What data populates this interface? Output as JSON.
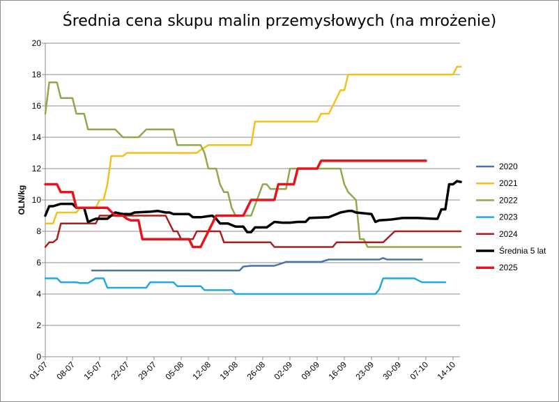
{
  "chart_data": {
    "type": "line",
    "title": "Średnia cena skupu malin przemysłowych (na mrożenie)",
    "xlabel": "",
    "ylabel": "OLN/kg",
    "ylim": [
      0,
      20
    ],
    "yticks": [
      0,
      2,
      4,
      6,
      8,
      10,
      12,
      14,
      16,
      18,
      20
    ],
    "xlim": [
      0,
      105
    ],
    "xticks": [
      {
        "x": 0,
        "label": "01-07"
      },
      {
        "x": 7,
        "label": "08-07"
      },
      {
        "x": 14,
        "label": "15-07"
      },
      {
        "x": 21,
        "label": "22-07"
      },
      {
        "x": 28,
        "label": "29-07"
      },
      {
        "x": 35,
        "label": "05-08"
      },
      {
        "x": 42,
        "label": "12-08"
      },
      {
        "x": 49,
        "label": "19-08"
      },
      {
        "x": 56,
        "label": "26-08"
      },
      {
        "x": 63,
        "label": "02-09"
      },
      {
        "x": 70,
        "label": "09-09"
      },
      {
        "x": 77,
        "label": "16-09"
      },
      {
        "x": 84,
        "label": "23-09"
      },
      {
        "x": 91,
        "label": "30-09"
      },
      {
        "x": 98,
        "label": "07-10"
      },
      {
        "x": 105,
        "label": "14-10"
      }
    ],
    "grid": true,
    "legend_position": "right",
    "series": [
      {
        "name": "2020",
        "color": "#4a72a8",
        "width": 2.5,
        "points": [
          [
            12,
            5.5
          ],
          [
            50,
            5.5
          ],
          [
            51,
            5.75
          ],
          [
            53,
            5.8
          ],
          [
            54,
            5.8
          ],
          [
            59,
            5.8
          ],
          [
            62,
            6.05
          ],
          [
            71,
            6.05
          ],
          [
            73,
            6.2
          ],
          [
            86,
            6.2
          ],
          [
            87,
            6.3
          ],
          [
            88,
            6.2
          ],
          [
            97,
            6.2
          ]
        ]
      },
      {
        "name": "2021",
        "color": "#f2c21c",
        "width": 2.5,
        "points": [
          [
            0,
            8.5
          ],
          [
            2,
            8.5
          ],
          [
            3,
            9.2
          ],
          [
            8,
            9.2
          ],
          [
            9,
            9.5
          ],
          [
            13,
            9.5
          ],
          [
            14,
            10
          ],
          [
            15,
            10
          ],
          [
            16,
            11
          ],
          [
            17,
            12.8
          ],
          [
            20,
            12.8
          ],
          [
            21,
            13
          ],
          [
            35,
            13
          ],
          [
            36,
            13
          ],
          [
            39,
            13
          ],
          [
            40,
            13.2
          ],
          [
            42,
            13.5
          ],
          [
            53,
            13.5
          ],
          [
            54,
            15
          ],
          [
            70,
            15
          ],
          [
            71,
            15.5
          ],
          [
            73,
            15.5
          ],
          [
            75,
            16.5
          ],
          [
            76,
            17
          ],
          [
            77,
            17
          ],
          [
            78,
            18
          ],
          [
            105,
            18
          ],
          [
            106,
            18.5
          ],
          [
            107,
            18.5
          ]
        ]
      },
      {
        "name": "2022",
        "color": "#8ea84a",
        "width": 2.5,
        "points": [
          [
            0,
            15.5
          ],
          [
            1,
            17.5
          ],
          [
            3,
            17.5
          ],
          [
            4,
            16.5
          ],
          [
            7,
            16.5
          ],
          [
            8,
            15.5
          ],
          [
            10,
            15.5
          ],
          [
            11,
            14.5
          ],
          [
            18,
            14.5
          ],
          [
            20,
            14
          ],
          [
            24,
            14
          ],
          [
            26,
            14.5
          ],
          [
            32,
            14.5
          ],
          [
            33,
            14.5
          ],
          [
            34,
            13.5
          ],
          [
            39,
            13.5
          ],
          [
            40,
            13.5
          ],
          [
            41,
            13
          ],
          [
            42,
            12
          ],
          [
            44,
            12
          ],
          [
            45,
            11
          ],
          [
            46,
            10.5
          ],
          [
            47,
            10.5
          ],
          [
            48,
            9.5
          ],
          [
            49,
            9
          ],
          [
            53,
            9
          ],
          [
            56,
            11
          ],
          [
            57,
            11
          ],
          [
            58,
            10.7
          ],
          [
            62,
            10.7
          ],
          [
            63,
            12
          ],
          [
            64,
            12
          ],
          [
            65,
            12
          ],
          [
            66,
            12
          ],
          [
            67,
            12
          ],
          [
            76,
            12
          ],
          [
            77,
            11
          ],
          [
            78,
            10.5
          ],
          [
            80,
            10
          ],
          [
            81,
            7.5
          ],
          [
            82,
            7.5
          ],
          [
            83,
            7
          ],
          [
            107,
            7
          ]
        ]
      },
      {
        "name": "2023",
        "color": "#1fa9dc",
        "width": 2.5,
        "points": [
          [
            0,
            5
          ],
          [
            3,
            5
          ],
          [
            4,
            4.75
          ],
          [
            8,
            4.75
          ],
          [
            9,
            4.7
          ],
          [
            11,
            4.7
          ],
          [
            13,
            5
          ],
          [
            15,
            5
          ],
          [
            16,
            4.4
          ],
          [
            26,
            4.4
          ],
          [
            27,
            4.75
          ],
          [
            33,
            4.75
          ],
          [
            34,
            4.5
          ],
          [
            40,
            4.5
          ],
          [
            41,
            4.25
          ],
          [
            48,
            4.25
          ],
          [
            49,
            4
          ],
          [
            85,
            4
          ],
          [
            86,
            4.3
          ],
          [
            87,
            5
          ],
          [
            95,
            5
          ],
          [
            97,
            4.75
          ],
          [
            103,
            4.75
          ]
        ]
      },
      {
        "name": "2024",
        "color": "#a8201c",
        "width": 2.5,
        "points": [
          [
            0,
            7
          ],
          [
            1,
            7.3
          ],
          [
            2,
            7.3
          ],
          [
            3,
            7.5
          ],
          [
            4,
            8.5
          ],
          [
            13,
            8.5
          ],
          [
            14,
            9
          ],
          [
            26,
            9
          ],
          [
            31,
            9
          ],
          [
            33,
            8
          ],
          [
            34,
            8
          ],
          [
            35,
            7.5
          ],
          [
            38,
            7.5
          ],
          [
            39,
            8
          ],
          [
            45,
            8
          ],
          [
            46,
            7.3
          ],
          [
            58,
            7.3
          ],
          [
            59,
            7
          ],
          [
            74,
            7
          ],
          [
            75,
            7.3
          ],
          [
            87,
            7.3
          ],
          [
            90,
            8
          ],
          [
            107,
            8
          ]
        ]
      },
      {
        "name": "Średnia 5 lat",
        "color": "#000000",
        "width": 3.5,
        "points": [
          [
            0,
            9
          ],
          [
            1,
            9.6
          ],
          [
            2,
            9.6
          ],
          [
            4,
            9.75
          ],
          [
            7,
            9.75
          ],
          [
            8,
            9.5
          ],
          [
            10,
            9.5
          ],
          [
            11,
            8.6
          ],
          [
            13,
            8.8
          ],
          [
            16,
            8.8
          ],
          [
            18,
            9.2
          ],
          [
            20,
            9.1
          ],
          [
            22,
            9.1
          ],
          [
            23,
            9.2
          ],
          [
            27,
            9.25
          ],
          [
            29,
            9.3
          ],
          [
            31,
            9.2
          ],
          [
            32,
            9.2
          ],
          [
            33,
            9.1
          ],
          [
            37,
            9.1
          ],
          [
            38,
            8.9
          ],
          [
            40,
            8.9
          ],
          [
            43,
            9
          ],
          [
            44,
            8.8
          ],
          [
            45,
            8.5
          ],
          [
            47,
            8.5
          ],
          [
            49,
            8.3
          ],
          [
            51,
            8.3
          ],
          [
            52,
            7.95
          ],
          [
            53,
            7.95
          ],
          [
            54,
            8.25
          ],
          [
            57,
            8.25
          ],
          [
            59,
            8.6
          ],
          [
            61,
            8.55
          ],
          [
            63,
            8.55
          ],
          [
            65,
            8.6
          ],
          [
            67,
            8.6
          ],
          [
            68,
            8.85
          ],
          [
            73,
            8.9
          ],
          [
            75,
            9.1
          ],
          [
            76,
            9.2
          ],
          [
            78,
            9.3
          ],
          [
            79,
            9.3
          ],
          [
            80,
            9.2
          ],
          [
            84,
            9.1
          ],
          [
            85,
            8.6
          ],
          [
            86,
            8.7
          ],
          [
            89,
            8.75
          ],
          [
            92,
            8.85
          ],
          [
            96,
            8.85
          ],
          [
            100,
            8.8
          ],
          [
            101,
            8.8
          ],
          [
            102,
            9.4
          ],
          [
            103,
            9.4
          ],
          [
            104,
            11
          ],
          [
            105,
            11
          ],
          [
            106,
            11.2
          ],
          [
            107,
            11.15
          ]
        ]
      },
      {
        "name": "2025",
        "color": "#e8141c",
        "width": 3.5,
        "points": [
          [
            0,
            11
          ],
          [
            3,
            11
          ],
          [
            4,
            10.5
          ],
          [
            7,
            10.5
          ],
          [
            8,
            9.5
          ],
          [
            16,
            9.5
          ],
          [
            18,
            9
          ],
          [
            20,
            9
          ],
          [
            21,
            8.8
          ],
          [
            22,
            8.7
          ],
          [
            24,
            8.7
          ],
          [
            25,
            7.5
          ],
          [
            34,
            7.5
          ],
          [
            35,
            7.5
          ],
          [
            37,
            7.5
          ],
          [
            38,
            7
          ],
          [
            40,
            7
          ],
          [
            41,
            7.5
          ],
          [
            42,
            8
          ],
          [
            43,
            8.5
          ],
          [
            44,
            9
          ],
          [
            49,
            9
          ],
          [
            51,
            9
          ],
          [
            52,
            9.5
          ],
          [
            53,
            10
          ],
          [
            57,
            10
          ],
          [
            59,
            10
          ],
          [
            60,
            11
          ],
          [
            64,
            11
          ],
          [
            65,
            12
          ],
          [
            70,
            12
          ],
          [
            71,
            12.5
          ],
          [
            98,
            12.5
          ]
        ]
      }
    ]
  }
}
